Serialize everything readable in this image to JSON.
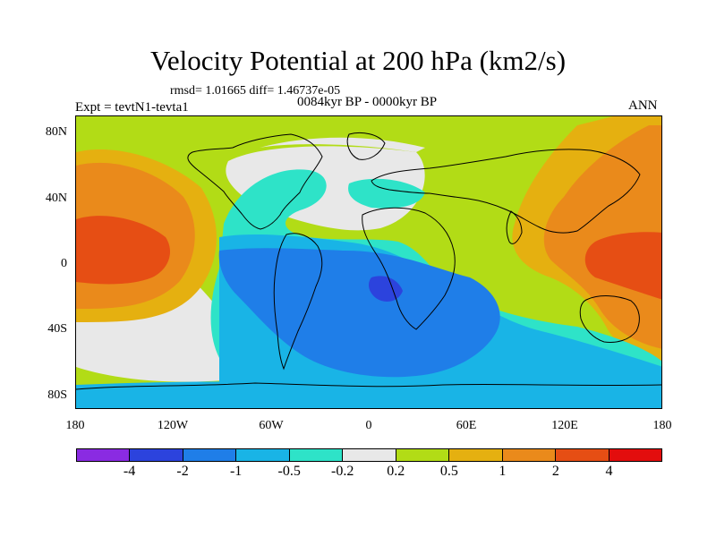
{
  "header": {
    "title": "Velocity Potential at 200 hPa (km2/s)",
    "stats": "rmsd= 1.01665 diff= 1.46737e-05",
    "period": "0084kyr BP - 0000kyr BP",
    "experiment": "Expt = tevtN1-tevta1",
    "season": "ANN"
  },
  "axes": {
    "y_ticks": [
      "80N",
      "40N",
      "0",
      "40S",
      "80S"
    ],
    "x_ticks": [
      "180",
      "120W",
      "60W",
      "0",
      "60E",
      "120E",
      "180"
    ]
  },
  "colorbar": {
    "colors": [
      "#8a2be2",
      "#2c43dd",
      "#1f7ee8",
      "#19b4e6",
      "#2ee3c8",
      "#e8e8e8",
      "#b2dc16",
      "#e5b010",
      "#ea8a1b",
      "#e64e14",
      "#e30d0d"
    ],
    "labels": [
      "-4",
      "-2",
      "-1",
      "-0.5",
      "-0.2",
      "0.2",
      "0.5",
      "1",
      "2",
      "4"
    ]
  },
  "map_colors": {
    "ocean_background": "#e8e8e8",
    "coastline": "#000000"
  }
}
